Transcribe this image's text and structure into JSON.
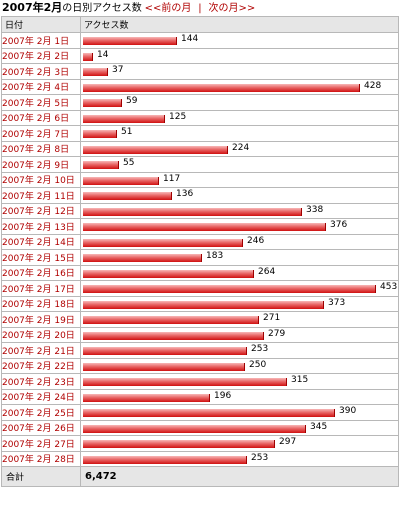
{
  "header": {
    "title": "2007年2月",
    "subtitle": "の日別アクセス数",
    "prev_link": "<<前の月",
    "separator": "|",
    "next_link": "次の月>>"
  },
  "table": {
    "col_date": "日付",
    "col_access": "アクセス数",
    "rows": [
      {
        "date": "2007年 2月 1日",
        "value": 144
      },
      {
        "date": "2007年 2月 2日",
        "value": 14
      },
      {
        "date": "2007年 2月 3日",
        "value": 37
      },
      {
        "date": "2007年 2月 4日",
        "value": 428
      },
      {
        "date": "2007年 2月 5日",
        "value": 59
      },
      {
        "date": "2007年 2月 6日",
        "value": 125
      },
      {
        "date": "2007年 2月 7日",
        "value": 51
      },
      {
        "date": "2007年 2月 8日",
        "value": 224
      },
      {
        "date": "2007年 2月 9日",
        "value": 55
      },
      {
        "date": "2007年 2月 10日",
        "value": 117
      },
      {
        "date": "2007年 2月 11日",
        "value": 136
      },
      {
        "date": "2007年 2月 12日",
        "value": 338
      },
      {
        "date": "2007年 2月 13日",
        "value": 376
      },
      {
        "date": "2007年 2月 14日",
        "value": 246
      },
      {
        "date": "2007年 2月 15日",
        "value": 183
      },
      {
        "date": "2007年 2月 16日",
        "value": 264
      },
      {
        "date": "2007年 2月 17日",
        "value": 453
      },
      {
        "date": "2007年 2月 18日",
        "value": 373
      },
      {
        "date": "2007年 2月 19日",
        "value": 271
      },
      {
        "date": "2007年 2月 20日",
        "value": 279
      },
      {
        "date": "2007年 2月 21日",
        "value": 253
      },
      {
        "date": "2007年 2月 22日",
        "value": 250
      },
      {
        "date": "2007年 2月 23日",
        "value": 315
      },
      {
        "date": "2007年 2月 24日",
        "value": 196
      },
      {
        "date": "2007年 2月 25日",
        "value": 390
      },
      {
        "date": "2007年 2月 26日",
        "value": 345
      },
      {
        "date": "2007年 2月 27日",
        "value": 297
      },
      {
        "date": "2007年 2月 28日",
        "value": 253
      }
    ],
    "total_label": "合計",
    "total_value": "6,472"
  },
  "colors": {
    "link": "#b00000",
    "bar": "#d01010",
    "header_bg": "#e6e6e6"
  }
}
